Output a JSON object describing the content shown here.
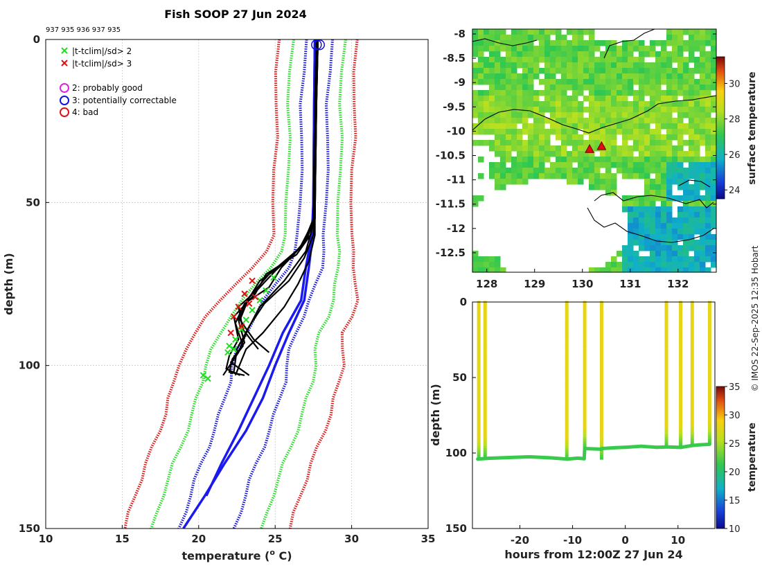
{
  "title": "Fish SOOP 27 Jun 2024",
  "platform_ids": "937 935 936 937 935",
  "copyright": "© IMOS 22-Sep-2025 12:35 Hobart",
  "legend": {
    "crit2": "|t-tclim|/sd> 2",
    "crit3": "|t-tclim|/sd> 3",
    "q2": "2: probably good",
    "q3": "3: potentially correctable",
    "q4": "4: bad"
  },
  "colors": {
    "green": "#22dd22",
    "red": "#dd1111",
    "blue": "#1111dd",
    "blueProfile": "#1a1aee",
    "magenta": "#dd22dd",
    "black": "#000000"
  },
  "chart_data": [
    {
      "type": "line",
      "id": "profiles",
      "xlabel": "temperature (",
      "xlabel_sup": "o",
      "xlabel_end": " C)",
      "ylabel": "depth (m)",
      "xlim": [
        10,
        35
      ],
      "ylim": [
        150,
        0
      ],
      "xticks": [
        "10",
        "15",
        "20",
        "25",
        "30",
        "35"
      ],
      "yticks": [
        "0",
        "50",
        "100",
        "150"
      ],
      "climatology": {
        "depth": [
          0,
          10,
          20,
          30,
          40,
          50,
          60,
          65,
          70,
          75,
          80,
          85,
          90,
          95,
          100,
          105,
          110,
          115,
          120,
          125,
          130,
          135,
          140,
          145,
          150
        ],
        "mean": [
          27.8,
          27.7,
          27.6,
          27.6,
          27.5,
          27.5,
          27.4,
          27.2,
          26.9,
          26.4,
          25.8,
          25.2,
          24.7,
          24.3,
          24.0,
          23.8,
          23.5,
          23.2,
          22.8,
          22.4,
          22.0,
          21.6,
          21.2,
          20.9,
          20.6
        ],
        "sd": [
          0.85,
          0.85,
          0.85,
          0.85,
          0.85,
          0.85,
          0.85,
          0.95,
          1.1,
          1.3,
          1.5,
          1.6,
          1.6,
          1.7,
          1.8,
          1.8,
          1.8,
          1.8,
          1.8,
          1.8,
          1.8,
          1.8,
          1.8,
          1.8,
          1.8
        ]
      },
      "multipliers": [
        {
          "k": 1,
          "color": "blue"
        },
        {
          "k": 2,
          "color": "green"
        },
        {
          "k": 3,
          "color": "red"
        }
      ],
      "profiles_blue": [
        {
          "depth": [
            0,
            20,
            50,
            60,
            70,
            80,
            90,
            100,
            110,
            120,
            130,
            140,
            150
          ],
          "temp": [
            27.6,
            27.55,
            27.5,
            27.45,
            27.2,
            26.9,
            25.9,
            25.0,
            24.2,
            23.1,
            21.7,
            20.4,
            19.0
          ]
        },
        {
          "depth": [
            0,
            20,
            50,
            60,
            70,
            80,
            90,
            100,
            110,
            120,
            130,
            140
          ],
          "temp": [
            27.6,
            27.55,
            27.5,
            27.4,
            27.0,
            26.7,
            25.5,
            24.6,
            23.6,
            22.6,
            21.5,
            20.5
          ]
        }
      ],
      "profiles_black": [
        {
          "depth": [
            0,
            20,
            55,
            60,
            66,
            72,
            78,
            85,
            92,
            97,
            101,
            103
          ],
          "temp": [
            27.8,
            27.7,
            27.5,
            27.3,
            26.4,
            24.4,
            23.7,
            22.3,
            22.6,
            22.0,
            21.8,
            22.7
          ]
        },
        {
          "depth": [
            0,
            20,
            55,
            61,
            68,
            74,
            80,
            86,
            93,
            98,
            102,
            103
          ],
          "temp": [
            27.7,
            27.7,
            27.5,
            27.1,
            25.8,
            24.0,
            23.2,
            22.6,
            23.0,
            22.2,
            22.0,
            23.0
          ]
        },
        {
          "depth": [
            0,
            20,
            55,
            62,
            70,
            76,
            81,
            87,
            94,
            99,
            103
          ],
          "temp": [
            27.7,
            27.6,
            27.5,
            27.0,
            25.4,
            24.6,
            23.0,
            22.4,
            22.9,
            22.1,
            23.3
          ]
        },
        {
          "depth": [
            0,
            20,
            55,
            60,
            67,
            74,
            81,
            88,
            95,
            102
          ],
          "temp": [
            27.8,
            27.7,
            27.6,
            27.5,
            26.9,
            25.9,
            24.3,
            23.3,
            22.5,
            22.3
          ]
        },
        {
          "depth": [
            0,
            20,
            55,
            60,
            68,
            75,
            82,
            90,
            95,
            103
          ],
          "temp": [
            27.8,
            27.7,
            27.6,
            27.6,
            27.2,
            26.5,
            25.6,
            24.2,
            23.1,
            22.4
          ]
        },
        {
          "depth": [
            0,
            20,
            55,
            63,
            71,
            77,
            82,
            89,
            95
          ],
          "temp": [
            27.7,
            27.6,
            27.5,
            26.8,
            25.0,
            23.8,
            22.6,
            22.9,
            23.9
          ]
        },
        {
          "depth": [
            0,
            20,
            55,
            64,
            72,
            79,
            86,
            92,
            96
          ],
          "temp": [
            27.7,
            27.7,
            27.6,
            26.6,
            24.6,
            23.3,
            22.7,
            23.6,
            24.6
          ]
        },
        {
          "depth": [
            0,
            20,
            55,
            65,
            74,
            82,
            89,
            96,
            103
          ],
          "temp": [
            27.7,
            27.6,
            27.6,
            27.0,
            25.6,
            24.0,
            23.2,
            22.6,
            21.6
          ]
        }
      ],
      "flags_green": {
        "temp": [
          24.9,
          24.4,
          24.0,
          23.5,
          23.1,
          22.8,
          22.4,
          22.0,
          21.9,
          22.3,
          20.3,
          20.6
        ],
        "depth": [
          73,
          77,
          80,
          83,
          86,
          89,
          92,
          94,
          96,
          95,
          103,
          104
        ]
      },
      "flags_red": {
        "temp": [
          23.5,
          23.0,
          22.6,
          22.3,
          22.8,
          22.1,
          23.3,
          23.7
        ],
        "depth": [
          74,
          78,
          82,
          85,
          88,
          90,
          81,
          79
        ]
      },
      "qc_circles": {
        "temp": [
          27.7,
          27.9
        ],
        "depth": [
          1,
          1
        ]
      }
    },
    {
      "type": "heatmap",
      "id": "sst_map",
      "colorbar_label": "surface temperature",
      "xlim": [
        127.7,
        132.8
      ],
      "ylim": [
        -12.9,
        -7.9
      ],
      "xticks": [
        "128",
        "129",
        "130",
        "131",
        "132"
      ],
      "yticks": [
        "-8",
        "-8.5",
        "-9",
        "-9.5",
        "-10",
        "-10.5",
        "-11",
        "-11.5",
        "-12",
        "-12.5"
      ],
      "cbar_range": [
        23.5,
        31.5
      ],
      "cbar_ticks": [
        "24",
        "26",
        "28",
        "30"
      ],
      "markers": [
        {
          "lon": 130.15,
          "lat": -10.38
        },
        {
          "lon": 130.4,
          "lat": -10.32
        }
      ]
    },
    {
      "type": "scatter",
      "id": "time_depth",
      "xlabel": "hours from 12:00Z 27 Jun 24",
      "ylabel": "depth (m)",
      "xlim": [
        -29,
        17
      ],
      "ylim": [
        150,
        0
      ],
      "xticks": [
        "-20",
        "-10",
        "0",
        "10"
      ],
      "yticks": [
        "0",
        "50",
        "100",
        "150"
      ],
      "colorbar_label": "temperature",
      "cbar_range": [
        10,
        35
      ],
      "cbar_ticks": [
        "10",
        "15",
        "20",
        "25",
        "30",
        "35"
      ],
      "casts": [
        {
          "t": -27.8,
          "bottom": 104
        },
        {
          "t": -26.6,
          "bottom": 103
        },
        {
          "t": -11.1,
          "bottom": 104
        },
        {
          "t": -7.7,
          "bottom": 97
        },
        {
          "t": -4.5,
          "bottom": 104
        },
        {
          "t": 7.8,
          "bottom": 96
        },
        {
          "t": 10.5,
          "bottom": 96
        },
        {
          "t": 12.7,
          "bottom": 95
        },
        {
          "t": 16.0,
          "bottom": 94
        }
      ],
      "bottom_path": {
        "t": [
          -28,
          -26,
          -22,
          -18,
          -14,
          -11,
          -9,
          -7.8,
          -7.7,
          -4.5,
          -4.4,
          -2,
          0,
          3,
          6,
          8,
          10.5,
          12.7,
          14,
          16
        ],
        "depth": [
          104,
          103.5,
          103,
          102.5,
          103.2,
          104,
          103.4,
          103.8,
          97,
          97.5,
          97,
          96.5,
          96.2,
          95.5,
          96.2,
          96,
          96.3,
          95,
          94.6,
          94.2
        ]
      }
    }
  ]
}
